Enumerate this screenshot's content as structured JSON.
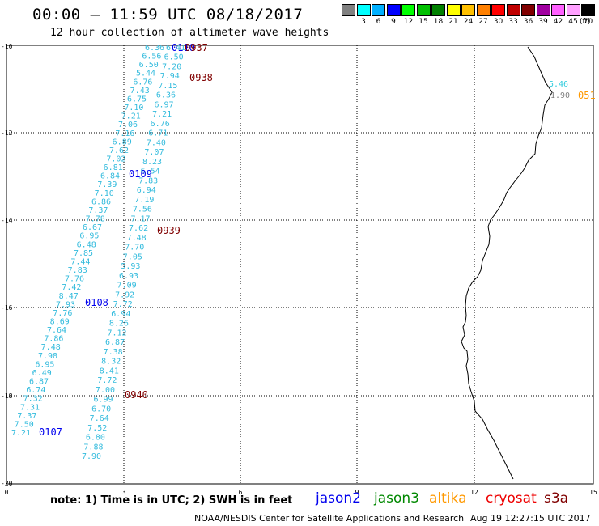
{
  "title": "00:00 – 11:59 UTC 08/18/2017",
  "subtitle": "12 hour collection of altimeter wave heights",
  "colorbar": {
    "unit": "(ft)",
    "colors": [
      "#808080",
      "#00ffff",
      "#00b0ff",
      "#0000ff",
      "#00ff00",
      "#00c000",
      "#008000",
      "#ffff00",
      "#ffc000",
      "#ff8000",
      "#ff0000",
      "#c00000",
      "#800000",
      "#a000a0",
      "#ff60ff",
      "#ffa0ff",
      "#000000"
    ],
    "labels": [
      "",
      "3",
      "6",
      "9",
      "12",
      "15",
      "18",
      "21",
      "24",
      "27",
      "30",
      "33",
      "36",
      "39",
      "42",
      "45",
      "70"
    ]
  },
  "axes": {
    "x_ticks": [
      "0",
      "3",
      "6",
      "9",
      "12",
      "15"
    ],
    "y_ticks": [
      "-10",
      "-12",
      "-14",
      "-16",
      "-18",
      "-20"
    ]
  },
  "track_a": {
    "color": "#33bbdd",
    "values": [
      "7.21",
      "7.50",
      "7.37",
      "7.31",
      "7.32",
      "6.74",
      "6.87",
      "6.49",
      "6.95",
      "7.98",
      "7.48",
      "7.86",
      "7.64",
      "8.69",
      "7.76",
      "7.93",
      "8.47",
      "7.42",
      "7.76",
      "7.83",
      "7.44",
      "7.85",
      "6.48",
      "6.95",
      "6.67",
      "7.78",
      "7.37",
      "6.86",
      "7.10",
      "7.39",
      "6.84",
      "6.81",
      "7.02",
      "7.62",
      "6.89",
      "7.16",
      "7.06",
      "7.21",
      "7.10",
      "6.75",
      "7.43",
      "6.76",
      "5.44",
      "6.50",
      "6.56",
      "6.36"
    ]
  },
  "track_b": {
    "color": "#33bbdd",
    "values": [
      "7.90",
      "7.88",
      "6.80",
      "7.52",
      "7.64",
      "6.70",
      "6.99",
      "7.00",
      "7.72",
      "8.41",
      "8.32",
      "7.38",
      "6.87",
      "7.12",
      "8.26",
      "6.94",
      "7.72",
      "7.92",
      "7.09",
      "6.93",
      "5.93",
      "7.05",
      "7.70",
      "7.48",
      "7.62",
      "7.17",
      "7.56",
      "7.19",
      "6.94",
      "7.83",
      "6.54",
      "8.23",
      "7.07",
      "7.40",
      "6.71",
      "6.76",
      "7.21",
      "6.97",
      "6.36",
      "7.15",
      "7.94",
      "7.20",
      "6.50",
      "6.41"
    ]
  },
  "time_labels": [
    {
      "text": "0107",
      "color": "#0000ee"
    },
    {
      "text": "0108",
      "color": "#0000ee"
    },
    {
      "text": "0109",
      "color": "#0000ee"
    },
    {
      "text": "0110",
      "color": "#0000ee"
    },
    {
      "text": "0937",
      "color": "#800000"
    },
    {
      "text": "0938",
      "color": "#800000"
    },
    {
      "text": "0939",
      "color": "#800000"
    },
    {
      "text": "0940",
      "color": "#800000"
    },
    {
      "text": "051",
      "color": "#ff9900"
    }
  ],
  "east_values": [
    {
      "text": "5.46",
      "color": "#33ccdd"
    },
    {
      "text": "1.90",
      "color": "#808080"
    }
  ],
  "note": "note: 1) Time is in UTC; 2) SWH is in feet",
  "satellites": [
    {
      "name": "jason2",
      "color": "#0000ee"
    },
    {
      "name": "jason3",
      "color": "#008800"
    },
    {
      "name": "altika",
      "color": "#ff9900"
    },
    {
      "name": "cryosat",
      "color": "#ee0000"
    },
    {
      "name": "s3a",
      "color": "#800000"
    }
  ],
  "credit": "NOAA/NESDIS Center for Satellite Applications and Research",
  "timestamp": "Aug 19 12:27:15 UTC 2017"
}
